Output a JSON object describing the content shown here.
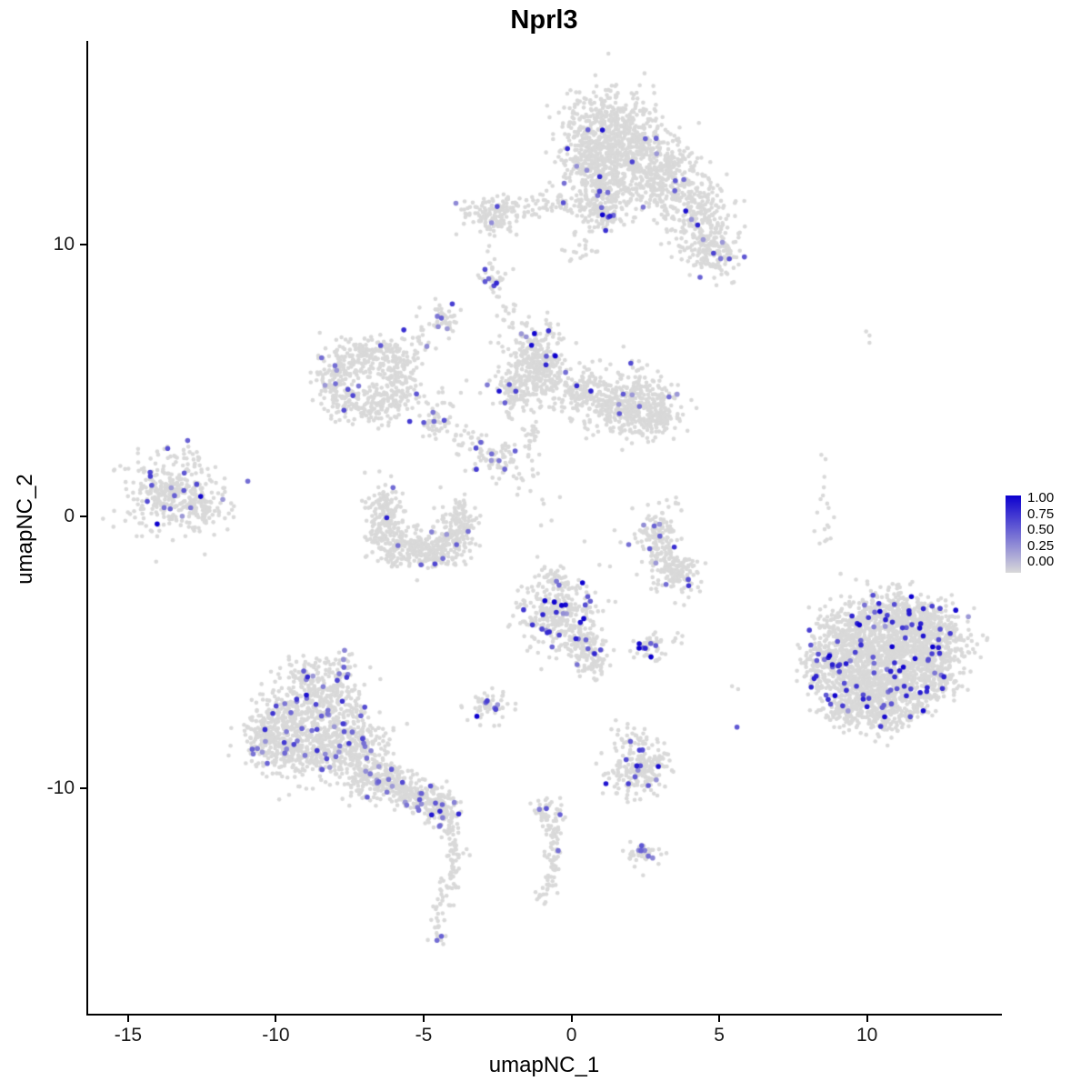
{
  "title": "Nprl3",
  "axes": {
    "xlabel": "umapNC_1",
    "ylabel": "umapNC_2",
    "xlim": [
      -16.35,
      14.5
    ],
    "ylim": [
      -18.3,
      17.5
    ],
    "x_ticks": [
      -15,
      -10,
      -5,
      0,
      5,
      10
    ],
    "x_tick_labels": [
      "-15",
      "-10",
      "-5",
      "0",
      "5",
      "10"
    ],
    "y_ticks": [
      -10,
      0,
      10
    ],
    "y_tick_labels": [
      "-10",
      "0",
      "10"
    ]
  },
  "legend": {
    "labels": [
      "1.00",
      "0.75",
      "0.50",
      "0.25",
      "0.00"
    ]
  },
  "chart_data": {
    "type": "scatter",
    "title": "Nprl3",
    "xlabel": "umapNC_1",
    "ylabel": "umapNC_2",
    "expression_range": [
      0,
      1
    ],
    "color_scale": {
      "low": "#D9D9D9",
      "high": "#0D00CF"
    },
    "description": "UMAP feature plot of Nprl3 expression; grey cells = 0, blue = 1. Clusters encoded as gaussian blobs: [cx, cy, sx, sy, n, expressing_fraction, mean_expression].",
    "blobs": [
      [
        1.2,
        14.3,
        0.8,
        0.7,
        420,
        0.012,
        0.5
      ],
      [
        2.2,
        13.2,
        0.9,
        0.7,
        380,
        0.015,
        0.5
      ],
      [
        0.6,
        12.9,
        0.6,
        0.6,
        200,
        0.01,
        0.5
      ],
      [
        1.1,
        12.0,
        0.45,
        0.5,
        130,
        0.02,
        0.55
      ],
      [
        1.15,
        11.15,
        0.3,
        0.3,
        90,
        0.05,
        0.7
      ],
      [
        3.3,
        12.2,
        0.6,
        0.6,
        220,
        0.012,
        0.5
      ],
      [
        4.3,
        11.0,
        0.55,
        0.7,
        220,
        0.012,
        0.5
      ],
      [
        4.8,
        9.6,
        0.45,
        0.45,
        120,
        0.02,
        0.5
      ],
      [
        -0.7,
        11.5,
        0.8,
        0.25,
        70,
        0.02,
        0.5
      ],
      [
        -2.7,
        11.1,
        0.5,
        0.35,
        130,
        0.02,
        0.5
      ],
      [
        0.3,
        10.1,
        0.4,
        0.4,
        25,
        0,
        0.5
      ],
      [
        -2.7,
        9.9,
        0.12,
        0.5,
        8,
        0,
        0.5
      ],
      [
        -2.75,
        8.7,
        0.3,
        0.25,
        35,
        0.09,
        0.5
      ],
      [
        -4.35,
        7.25,
        0.3,
        0.3,
        45,
        0.08,
        0.55
      ],
      [
        -2.1,
        7.4,
        0.2,
        0.4,
        15,
        0,
        0.5
      ],
      [
        -7.9,
        5.3,
        0.45,
        0.5,
        110,
        0.012,
        0.5
      ],
      [
        -7.0,
        6.0,
        0.5,
        0.35,
        110,
        0.012,
        0.5
      ],
      [
        -6.1,
        5.6,
        0.4,
        0.4,
        90,
        0.012,
        0.5
      ],
      [
        -5.8,
        4.7,
        0.35,
        0.4,
        80,
        0.012,
        0.5
      ],
      [
        -6.5,
        4.1,
        0.5,
        0.35,
        100,
        0.012,
        0.5
      ],
      [
        -7.6,
        4.2,
        0.4,
        0.35,
        90,
        0.02,
        0.5
      ],
      [
        -5.1,
        6.4,
        0.3,
        0.35,
        25,
        0.03,
        0.5
      ],
      [
        -4.3,
        4.4,
        0.4,
        0.25,
        10,
        0,
        0.5
      ],
      [
        -1.15,
        5.6,
        0.55,
        0.7,
        320,
        0.02,
        0.55
      ],
      [
        -1.9,
        4.6,
        0.4,
        0.4,
        90,
        0.02,
        0.5
      ],
      [
        0.2,
        4.7,
        0.5,
        0.4,
        130,
        0.02,
        0.5
      ],
      [
        1.9,
        4.15,
        0.85,
        0.6,
        430,
        0.015,
        0.5
      ],
      [
        2.9,
        3.6,
        0.35,
        0.3,
        70,
        0.02,
        0.5
      ],
      [
        -4.55,
        3.55,
        0.3,
        0.3,
        45,
        0.1,
        0.5
      ],
      [
        -3.6,
        2.8,
        0.3,
        0.25,
        25,
        0.03,
        0.5
      ],
      [
        -2.55,
        2.15,
        0.45,
        0.35,
        70,
        0.06,
        0.5
      ],
      [
        -1.3,
        3.1,
        0.15,
        0.4,
        25,
        0,
        0.5
      ],
      [
        -1.7,
        1.6,
        0.3,
        0.3,
        15,
        0.05,
        0.5
      ],
      [
        0.2,
        0.0,
        1.2,
        1.2,
        10,
        0,
        0.5
      ],
      [
        -13.6,
        0.9,
        0.75,
        0.7,
        340,
        0.055,
        0.5
      ],
      [
        -12.4,
        0.3,
        0.4,
        0.4,
        70,
        0.02,
        0.5
      ],
      [
        -12.8,
        2.2,
        0.3,
        0.25,
        12,
        0,
        0.5
      ],
      [
        -6.35,
        0.4,
        0.3,
        0.4,
        90,
        0.012,
        0.5
      ],
      [
        -6.3,
        -0.5,
        0.35,
        0.4,
        110,
        0.012,
        0.5
      ],
      [
        -5.7,
        -1.15,
        0.45,
        0.35,
        130,
        0.012,
        0.5
      ],
      [
        -4.8,
        -1.35,
        0.45,
        0.3,
        130,
        0.012,
        0.5
      ],
      [
        -4.05,
        -0.9,
        0.35,
        0.35,
        110,
        0.012,
        0.5
      ],
      [
        -3.8,
        -0.05,
        0.3,
        0.35,
        80,
        0.012,
        0.5
      ],
      [
        2.85,
        -0.6,
        0.3,
        0.4,
        70,
        0.02,
        0.5
      ],
      [
        3.15,
        -1.5,
        0.35,
        0.5,
        110,
        0.02,
        0.5
      ],
      [
        3.7,
        -2.2,
        0.4,
        0.35,
        90,
        0.02,
        0.5
      ],
      [
        3.45,
        0.45,
        0.15,
        0.2,
        8,
        0,
        0.5
      ],
      [
        -0.45,
        -3.6,
        0.65,
        0.7,
        340,
        0.065,
        0.75
      ],
      [
        -0.6,
        -2.3,
        0.25,
        0.25,
        40,
        0.02,
        0.5
      ],
      [
        0.55,
        -4.9,
        0.35,
        0.4,
        90,
        0.05,
        0.6
      ],
      [
        0.9,
        -5.5,
        0.2,
        0.25,
        30,
        0.06,
        0.6
      ],
      [
        2.65,
        -4.8,
        0.3,
        0.25,
        45,
        0.1,
        0.7
      ],
      [
        3.7,
        -4.6,
        0.15,
        0.15,
        6,
        0,
        0.5
      ],
      [
        -2.8,
        -6.95,
        0.35,
        0.3,
        55,
        0.09,
        0.55
      ],
      [
        -9.4,
        -7.2,
        0.6,
        0.5,
        190,
        0.05,
        0.5
      ],
      [
        -8.2,
        -6.8,
        0.6,
        0.5,
        170,
        0.05,
        0.5
      ],
      [
        -9.9,
        -8.5,
        0.6,
        0.5,
        200,
        0.04,
        0.5
      ],
      [
        -8.6,
        -8.6,
        0.65,
        0.55,
        240,
        0.04,
        0.5
      ],
      [
        -7.4,
        -8.2,
        0.55,
        0.5,
        190,
        0.05,
        0.5
      ],
      [
        -7.0,
        -9.4,
        0.5,
        0.45,
        150,
        0.04,
        0.5
      ],
      [
        -8.9,
        -5.9,
        0.5,
        0.35,
        70,
        0.06,
        0.5
      ],
      [
        -7.7,
        -5.7,
        0.35,
        0.3,
        45,
        0.08,
        0.5
      ],
      [
        -10.4,
        -7.8,
        0.35,
        0.4,
        70,
        0.04,
        0.5
      ],
      [
        -6.2,
        -9.7,
        0.4,
        0.35,
        110,
        0.03,
        0.5
      ],
      [
        -5.3,
        -10.2,
        0.45,
        0.3,
        130,
        0.04,
        0.5
      ],
      [
        -4.5,
        -10.7,
        0.35,
        0.3,
        110,
        0.06,
        0.6
      ],
      [
        -4.1,
        -11.5,
        0.15,
        0.35,
        30,
        0,
        0.5
      ],
      [
        -3.95,
        -12.3,
        0.15,
        0.35,
        25,
        0,
        0.5
      ],
      [
        -4.0,
        -13.1,
        0.12,
        0.3,
        18,
        0,
        0.5
      ],
      [
        -4.25,
        -13.9,
        0.15,
        0.35,
        16,
        0,
        0.5
      ],
      [
        -4.5,
        -14.7,
        0.12,
        0.3,
        12,
        0,
        0.5
      ],
      [
        -4.45,
        -15.4,
        0.15,
        0.25,
        10,
        0,
        0.5
      ],
      [
        -0.75,
        -10.9,
        0.3,
        0.3,
        50,
        0.05,
        0.55
      ],
      [
        -0.6,
        -11.9,
        0.15,
        0.4,
        30,
        0,
        0.5
      ],
      [
        -0.65,
        -12.9,
        0.15,
        0.4,
        25,
        0.04,
        0.5
      ],
      [
        -0.8,
        -13.7,
        0.2,
        0.3,
        18,
        0,
        0.5
      ],
      [
        2.35,
        -9.3,
        0.55,
        0.5,
        200,
        0.05,
        0.55
      ],
      [
        2.0,
        -8.1,
        0.3,
        0.3,
        25,
        0.05,
        0.5
      ],
      [
        2.45,
        -12.4,
        0.3,
        0.25,
        40,
        0.1,
        0.55
      ],
      [
        9.4,
        -4.3,
        0.6,
        0.55,
        240,
        0.035,
        0.7
      ],
      [
        10.5,
        -3.7,
        0.65,
        0.5,
        280,
        0.035,
        0.7
      ],
      [
        11.7,
        -3.8,
        0.6,
        0.5,
        240,
        0.035,
        0.7
      ],
      [
        12.5,
        -4.6,
        0.5,
        0.5,
        180,
        0.035,
        0.7
      ],
      [
        11.5,
        -5.1,
        0.6,
        0.55,
        280,
        0.035,
        0.7
      ],
      [
        10.3,
        -5.3,
        0.6,
        0.55,
        280,
        0.035,
        0.7
      ],
      [
        9.2,
        -5.7,
        0.5,
        0.5,
        200,
        0.035,
        0.7
      ],
      [
        10.0,
        -6.5,
        0.55,
        0.5,
        230,
        0.035,
        0.7
      ],
      [
        11.2,
        -6.5,
        0.55,
        0.5,
        220,
        0.035,
        0.7
      ],
      [
        12.2,
        -5.8,
        0.5,
        0.45,
        170,
        0.035,
        0.7
      ],
      [
        9.2,
        -7.0,
        0.4,
        0.4,
        110,
        0.035,
        0.7
      ],
      [
        10.5,
        -7.4,
        0.45,
        0.35,
        110,
        0.035,
        0.7
      ],
      [
        8.35,
        -5.5,
        0.3,
        0.5,
        90,
        0.05,
        0.6
      ],
      [
        8.55,
        0.0,
        0.12,
        0.8,
        16,
        0,
        0.5
      ],
      [
        9.85,
        6.5,
        0.15,
        0.15,
        3,
        0,
        0.5
      ],
      [
        8.6,
        2.15,
        0.1,
        0.1,
        2,
        0,
        0.5
      ],
      [
        5.5,
        -6.3,
        0.1,
        0.1,
        2,
        0,
        0.5
      ]
    ],
    "highlights": [
      [
        1.05,
        11.1,
        1.0
      ],
      [
        1.3,
        11.05,
        0.85
      ],
      [
        5.85,
        9.55,
        0.6
      ],
      [
        4.35,
        8.8,
        0.55
      ],
      [
        2.5,
        13.9,
        0.55
      ],
      [
        3.8,
        12.4,
        0.5
      ],
      [
        -2.8,
        8.75,
        0.5
      ],
      [
        -4.4,
        7.3,
        0.55
      ],
      [
        -7.2,
        4.8,
        0.45
      ],
      [
        -8.0,
        5.55,
        0.5
      ],
      [
        -1.35,
        6.3,
        0.95
      ],
      [
        -0.85,
        5.9,
        0.6
      ],
      [
        -0.2,
        5.3,
        0.5
      ],
      [
        1.75,
        4.5,
        0.6
      ],
      [
        2.3,
        4.05,
        0.5
      ],
      [
        3.3,
        4.4,
        0.5
      ],
      [
        -4.65,
        3.5,
        0.5
      ],
      [
        -2.7,
        2.3,
        0.5
      ],
      [
        -2.45,
        2.05,
        0.45
      ],
      [
        -10.95,
        1.3,
        0.5
      ],
      [
        -14.35,
        0.55,
        0.65
      ],
      [
        -13.1,
        1.6,
        0.6
      ],
      [
        -6.25,
        -0.05,
        0.85
      ],
      [
        -4.35,
        -1.55,
        0.5
      ],
      [
        2.8,
        -0.35,
        0.55
      ],
      [
        3.2,
        -2.5,
        0.5
      ],
      [
        -0.9,
        -3.1,
        1.0
      ],
      [
        -0.2,
        -3.25,
        0.95
      ],
      [
        0.3,
        -3.9,
        0.9
      ],
      [
        -0.75,
        -4.25,
        0.8
      ],
      [
        0.15,
        -4.5,
        0.85
      ],
      [
        0.55,
        -2.95,
        0.6
      ],
      [
        2.5,
        -4.85,
        0.85
      ],
      [
        2.85,
        -4.75,
        0.6
      ],
      [
        -2.9,
        -6.85,
        0.55
      ],
      [
        -2.6,
        -7.05,
        0.5
      ],
      [
        -7.7,
        -5.55,
        0.55
      ],
      [
        -4.45,
        -10.85,
        0.8
      ],
      [
        -4.6,
        -10.55,
        0.6
      ],
      [
        -4.4,
        -15.45,
        0.55
      ],
      [
        -4.55,
        -15.6,
        0.5
      ],
      [
        -0.85,
        -10.75,
        0.6
      ],
      [
        -0.45,
        -12.3,
        0.5
      ],
      [
        1.85,
        -8.95,
        0.65
      ],
      [
        2.6,
        -9.9,
        0.6
      ],
      [
        2.3,
        -8.6,
        0.7
      ],
      [
        2.35,
        -12.3,
        0.55
      ],
      [
        2.6,
        -12.5,
        0.5
      ],
      [
        5.6,
        -7.75,
        0.6
      ],
      [
        11.5,
        -2.95,
        1.0
      ],
      [
        13.0,
        -3.45,
        0.95
      ],
      [
        10.4,
        -3.2,
        0.8
      ],
      [
        11.9,
        -4.4,
        0.9
      ],
      [
        12.6,
        -5.9,
        0.85
      ],
      [
        11.9,
        -7.15,
        0.95
      ],
      [
        10.0,
        -7.0,
        0.9
      ],
      [
        9.3,
        -6.4,
        0.8
      ],
      [
        10.8,
        -5.7,
        0.85
      ],
      [
        9.0,
        -4.6,
        0.6
      ],
      [
        8.3,
        -5.3,
        0.6
      ],
      [
        12.2,
        -3.3,
        0.7
      ],
      [
        10.2,
        -2.9,
        0.65
      ],
      [
        11.2,
        -4.1,
        0.75
      ],
      [
        9.6,
        -5.0,
        0.7
      ]
    ]
  }
}
